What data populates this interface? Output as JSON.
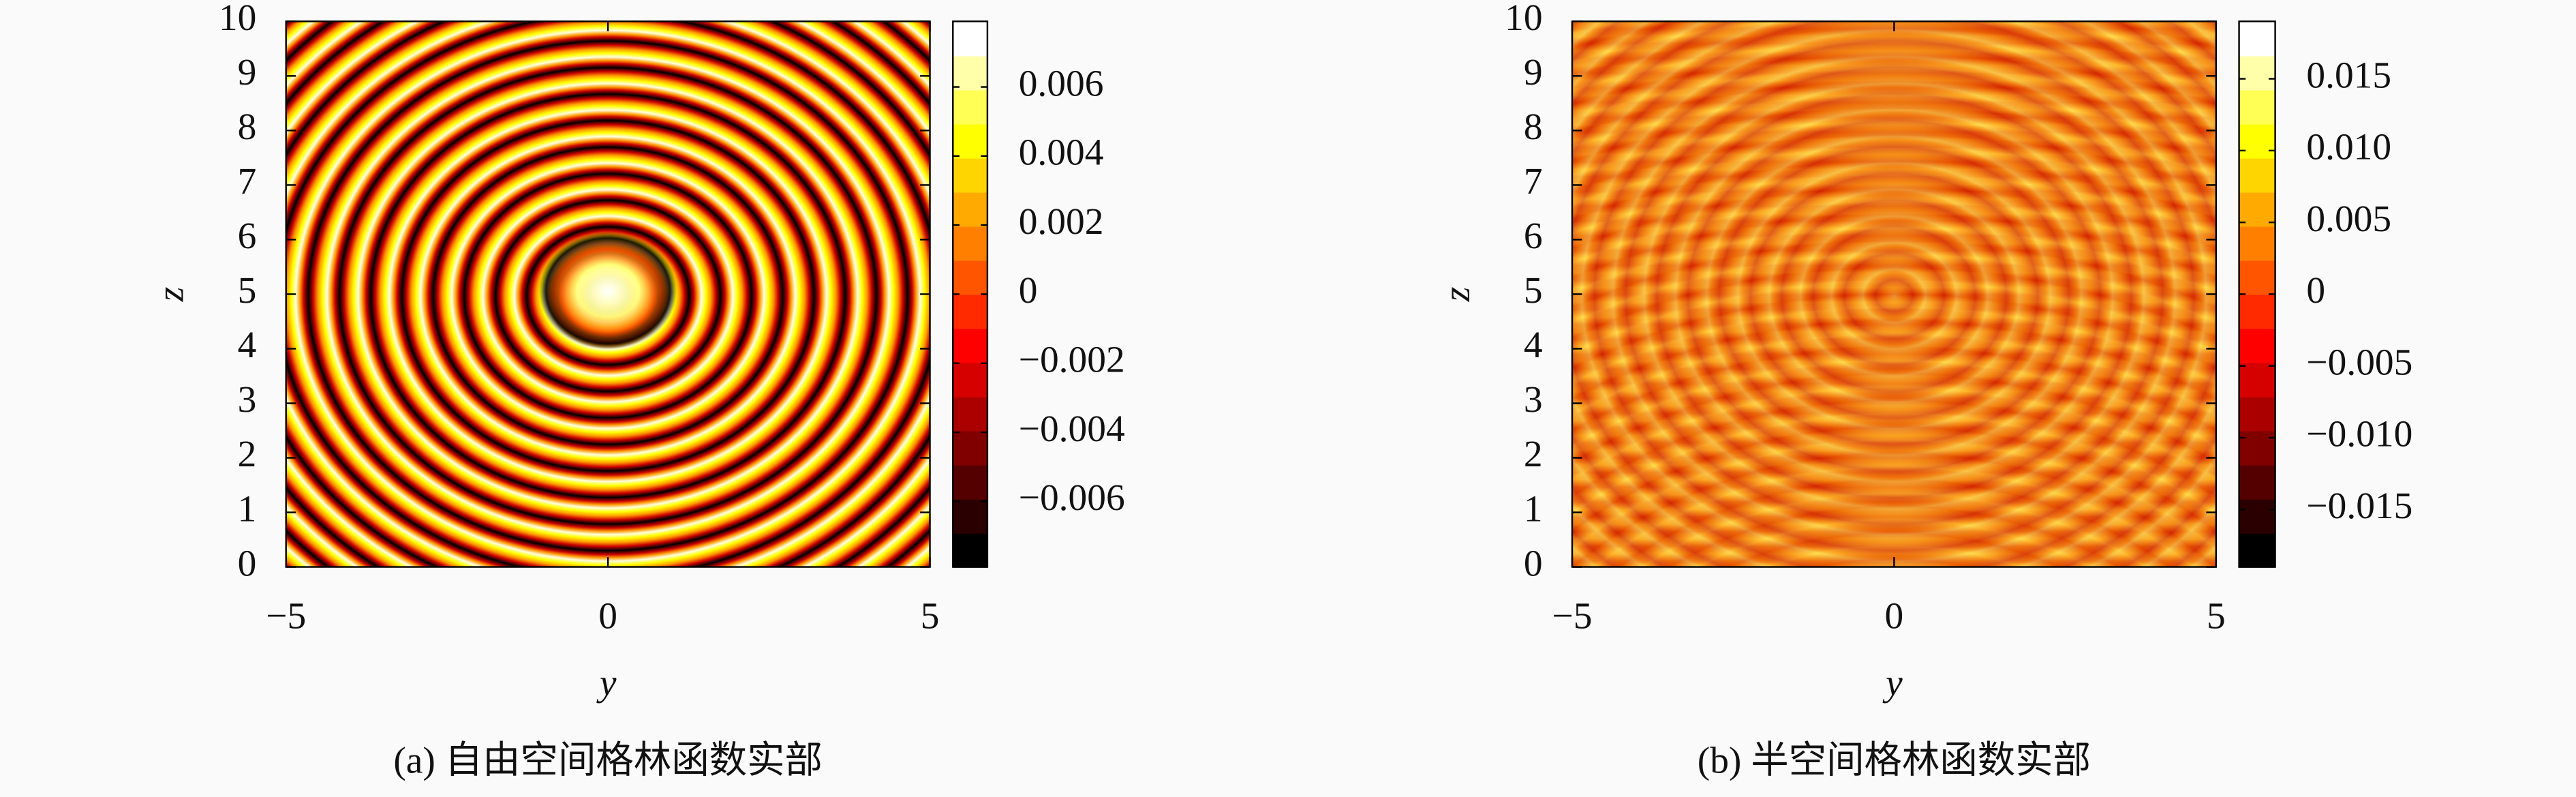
{
  "chart_data": [
    {
      "type": "heatmap",
      "xlabel": "y",
      "ylabel": "z",
      "caption": "(a) 自由空间格林函数实部",
      "xlim": [
        -5,
        5
      ],
      "ylim": [
        0,
        10
      ],
      "xticks": [
        {
          "value": -5,
          "label": "−5"
        },
        0,
        5
      ],
      "yticks": [
        0,
        1,
        2,
        3,
        4,
        5,
        6,
        7,
        8,
        9,
        10
      ],
      "clim": [
        -0.0079,
        0.0079
      ],
      "cticks": [
        {
          "value": -0.006,
          "label": "−0.006"
        },
        {
          "value": -0.004,
          "label": "−0.004"
        },
        {
          "value": -0.002,
          "label": "−0.002"
        },
        0,
        0.002,
        0.004,
        0.006
      ],
      "colormap": [
        "#000000",
        "#2a0000",
        "#550000",
        "#800000",
        "#aa0000",
        "#d50000",
        "#ff0000",
        "#ff2a00",
        "#ff5500",
        "#ff8000",
        "#ffaa00",
        "#ffd500",
        "#ffff00",
        "#ffff55",
        "#ffffaa",
        "#ffffff"
      ]
    },
    {
      "type": "heatmap",
      "xlabel": "y",
      "ylabel": "z",
      "caption": "(b) 半空间格林函数实部",
      "xlim": [
        -5,
        5
      ],
      "ylim": [
        0,
        10
      ],
      "xticks": [
        {
          "value": -5,
          "label": "−5"
        },
        0,
        5
      ],
      "yticks": [
        0,
        1,
        2,
        3,
        4,
        5,
        6,
        7,
        8,
        9,
        10
      ],
      "clim": [
        -0.019,
        0.019
      ],
      "cticks": [
        {
          "value": -0.015,
          "label": "−0.015"
        },
        {
          "value": -0.01,
          "label": "−0.010"
        },
        {
          "value": -0.005,
          "label": "−0.005"
        },
        0,
        0.005,
        {
          "value": 0.01,
          "label": "0.010"
        },
        0.015
      ],
      "colormap": [
        "#000000",
        "#2a0000",
        "#550000",
        "#800000",
        "#aa0000",
        "#d50000",
        "#ff0000",
        "#ff2a00",
        "#ff5500",
        "#ff8000",
        "#ffaa00",
        "#ffd500",
        "#ffff00",
        "#ffff55",
        "#ffffaa",
        "#ffffff"
      ]
    }
  ]
}
